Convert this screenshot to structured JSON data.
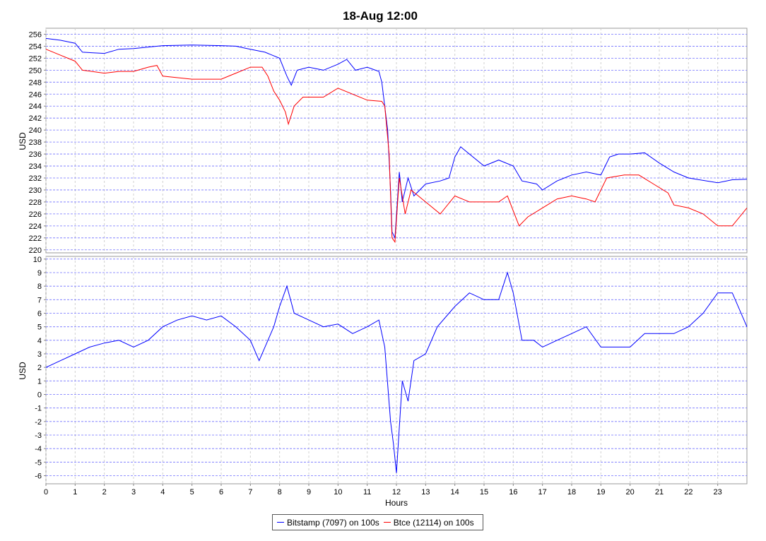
{
  "chart_data": [
    {
      "type": "line",
      "title": "18-Aug 12:00",
      "ylabel": "USD",
      "xlabel": "",
      "xlim": [
        0,
        24
      ],
      "ylim": [
        219.5,
        257
      ],
      "yticks": [
        220,
        222,
        224,
        226,
        228,
        230,
        232,
        234,
        236,
        238,
        240,
        242,
        244,
        246,
        248,
        250,
        252,
        254,
        256
      ],
      "grid": true,
      "series": [
        {
          "name": "Bitstamp (7097) on 100s",
          "color": "#0000ff",
          "x": [
            0,
            0.5,
            1,
            1.25,
            2,
            2.5,
            3,
            4,
            5,
            6,
            6.5,
            7,
            7.5,
            8,
            8.25,
            8.4,
            8.6,
            9,
            9.5,
            10,
            10.3,
            10.6,
            11,
            11.4,
            11.5,
            11.7,
            11.8,
            11.85,
            11.95,
            12.1,
            12.2,
            12.4,
            12.6,
            13,
            13.5,
            13.8,
            14,
            14.2,
            14.5,
            15,
            15.5,
            16,
            16.3,
            16.8,
            17,
            17.5,
            18,
            18.5,
            19,
            19.3,
            19.6,
            20,
            20.5,
            21,
            21.5,
            22,
            23,
            23.5,
            24
          ],
          "y": [
            255.3,
            255,
            254.5,
            253,
            252.8,
            253.5,
            253.6,
            254.1,
            254.2,
            254.1,
            254,
            253.5,
            253,
            252,
            249,
            247.5,
            250,
            250.5,
            250,
            251,
            251.8,
            250,
            250.5,
            249.8,
            248,
            240,
            230,
            223,
            222,
            233,
            228,
            232,
            229,
            231,
            231.5,
            232,
            235.5,
            237.2,
            236,
            234,
            235,
            234,
            231.5,
            231,
            230,
            231.5,
            232.5,
            233,
            232.5,
            235.5,
            236,
            236,
            236.2,
            234.5,
            233,
            232,
            231.2,
            231.7,
            231.8
          ]
        },
        {
          "name": "Btce (12114) on 100s",
          "color": "#ff0000",
          "x": [
            0,
            0.5,
            1,
            1.25,
            2,
            2.5,
            3,
            3.5,
            3.8,
            4,
            5,
            6,
            6.5,
            7,
            7.4,
            7.6,
            7.8,
            8,
            8.2,
            8.3,
            8.5,
            8.8,
            9.5,
            10,
            10.5,
            11,
            11.5,
            11.6,
            11.75,
            11.85,
            11.95,
            12.1,
            12.3,
            12.5,
            13,
            13.5,
            14,
            14.5,
            15,
            15.5,
            15.8,
            16.2,
            16.5,
            17,
            17.5,
            18,
            18.5,
            18.8,
            19.2,
            19.8,
            20.3,
            20.8,
            21.3,
            21.5,
            22,
            22.5,
            23,
            23.5,
            24
          ],
          "y": [
            253.5,
            252.5,
            251.5,
            250,
            249.5,
            249.8,
            249.8,
            250.5,
            250.8,
            249,
            248.5,
            248.5,
            249.5,
            250.5,
            250.5,
            249,
            246.5,
            245,
            243,
            241,
            244,
            245.5,
            245.5,
            247,
            246,
            245,
            244.8,
            244,
            236,
            222,
            221.3,
            232,
            226,
            230,
            228,
            226,
            229,
            228,
            228,
            228,
            229,
            224,
            225.5,
            227,
            228.5,
            229,
            228.5,
            228,
            232,
            232.5,
            232.5,
            231,
            229.5,
            227.5,
            227,
            226,
            224,
            224,
            227
          ]
        }
      ]
    },
    {
      "type": "line",
      "ylabel": "USD",
      "xlabel": "Hours",
      "xlim": [
        0,
        24
      ],
      "ylim": [
        -6.6,
        10.2
      ],
      "yticks": [
        -6,
        -5,
        -4,
        -3,
        -2,
        -1,
        0,
        1,
        2,
        3,
        4,
        5,
        6,
        7,
        8,
        9,
        10
      ],
      "xticks": [
        0,
        1,
        2,
        3,
        4,
        5,
        6,
        7,
        8,
        9,
        10,
        11,
        12,
        13,
        14,
        15,
        16,
        17,
        18,
        19,
        20,
        21,
        22,
        23
      ],
      "grid": true,
      "series": [
        {
          "color": "#0000ff",
          "x": [
            0,
            0.5,
            1,
            1.5,
            2,
            2.5,
            3,
            3.5,
            4,
            4.5,
            5,
            5.5,
            6,
            6.5,
            7,
            7.3,
            7.5,
            7.8,
            8,
            8.25,
            8.5,
            9,
            9.5,
            10,
            10.5,
            11,
            11.4,
            11.6,
            11.8,
            11.9,
            12,
            12.2,
            12.4,
            12.6,
            13,
            13.4,
            13.8,
            14,
            14.5,
            15,
            15.5,
            15.8,
            16,
            16.3,
            16.7,
            17,
            17.5,
            18,
            18.5,
            19,
            19.5,
            20,
            20.5,
            21,
            21.5,
            22,
            22.5,
            23,
            23.5,
            24
          ],
          "y": [
            2,
            2.5,
            3,
            3.5,
            3.8,
            4,
            3.5,
            4,
            5,
            5.5,
            5.8,
            5.5,
            5.8,
            5,
            4,
            2.5,
            3.5,
            5,
            6.5,
            8,
            6,
            5.5,
            5,
            5.2,
            4.5,
            5,
            5.5,
            3.5,
            -2,
            -3.7,
            -5.8,
            1,
            -0.5,
            2.5,
            3,
            5,
            6,
            6.5,
            7.5,
            7,
            7,
            9,
            7.5,
            4,
            4,
            3.5,
            4,
            4.5,
            5,
            3.5,
            3.5,
            3.5,
            4.5,
            4.5,
            4.5,
            5,
            6,
            7.5,
            7.5,
            5
          ]
        }
      ]
    }
  ],
  "legend": {
    "items": [
      "Bitstamp (7097) on 100s",
      "Btce (12114) on 100s"
    ]
  }
}
